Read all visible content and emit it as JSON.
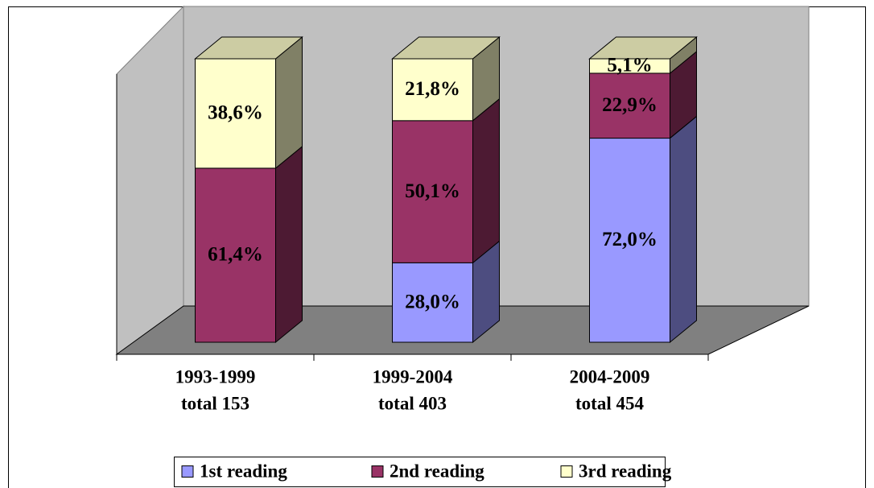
{
  "chart_data": {
    "type": "bar3d_stacked",
    "categories": [
      [
        "1993-1999",
        "total 153"
      ],
      [
        "1999-2004",
        "total 403"
      ],
      [
        "2004-2009",
        "total 454"
      ]
    ],
    "series": [
      {
        "name": "1st reading",
        "color": "#9999ff",
        "values": [
          0,
          28.0,
          72.0
        ],
        "value_labels": [
          null,
          "28,0%",
          "72,0%"
        ]
      },
      {
        "name": "2nd reading",
        "color": "#993366",
        "values": [
          61.4,
          50.1,
          22.9
        ],
        "value_labels": [
          "61,4%",
          "50,1%",
          "22,9%"
        ]
      },
      {
        "name": "3rd reading",
        "color": "#ffffcc",
        "values": [
          38.6,
          21.8,
          5.1
        ],
        "value_labels": [
          "38,6%",
          "21,8%",
          "5,1%"
        ]
      }
    ]
  }
}
